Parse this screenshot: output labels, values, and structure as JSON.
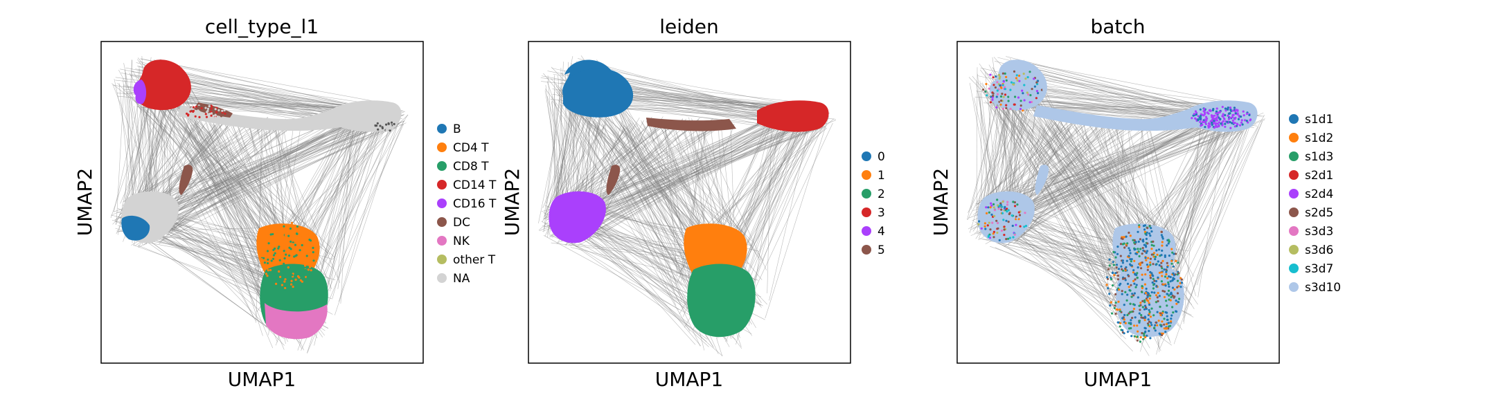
{
  "colors": {
    "edge": "#808080",
    "frame": "#000000",
    "background": "#ffffff"
  },
  "chart_data": [
    {
      "type": "scatter",
      "title": "cell_type_l1",
      "xlabel": "UMAP1",
      "ylabel": "UMAP2",
      "grid": false,
      "ticks": false,
      "legend_position": "right",
      "legend": [
        {
          "label": "B",
          "color": "#1f77b4"
        },
        {
          "label": "CD4 T",
          "color": "#ff7f0e"
        },
        {
          "label": "CD8 T",
          "color": "#279e68"
        },
        {
          "label": "CD14 T",
          "color": "#d62728"
        },
        {
          "label": "CD16 T",
          "color": "#aa40fc"
        },
        {
          "label": "DC",
          "color": "#8c564b"
        },
        {
          "label": "NK",
          "color": "#e377c2"
        },
        {
          "label": "other T",
          "color": "#b5bd61"
        },
        {
          "label": "NA",
          "color": "#d3d3d3"
        }
      ]
    },
    {
      "type": "scatter",
      "title": "leiden",
      "xlabel": "UMAP1",
      "ylabel": "UMAP2",
      "grid": false,
      "ticks": false,
      "legend_position": "right",
      "legend": [
        {
          "label": "0",
          "color": "#1f77b4"
        },
        {
          "label": "1",
          "color": "#ff7f0e"
        },
        {
          "label": "2",
          "color": "#279e68"
        },
        {
          "label": "3",
          "color": "#d62728"
        },
        {
          "label": "4",
          "color": "#aa40fc"
        },
        {
          "label": "5",
          "color": "#8c564b"
        }
      ]
    },
    {
      "type": "scatter",
      "title": "batch",
      "xlabel": "UMAP1",
      "ylabel": "UMAP2",
      "grid": false,
      "ticks": false,
      "legend_position": "right",
      "legend": [
        {
          "label": "s1d1",
          "color": "#1f77b4"
        },
        {
          "label": "s1d2",
          "color": "#ff7f0e"
        },
        {
          "label": "s1d3",
          "color": "#279e68"
        },
        {
          "label": "s2d1",
          "color": "#d62728"
        },
        {
          "label": "s2d4",
          "color": "#aa40fc"
        },
        {
          "label": "s2d5",
          "color": "#8c564b"
        },
        {
          "label": "s3d3",
          "color": "#e377c2"
        },
        {
          "label": "s3d6",
          "color": "#b5bd61"
        },
        {
          "label": "s3d7",
          "color": "#17becf"
        },
        {
          "label": "s3d10",
          "color": "#aec7e8"
        }
      ]
    }
  ]
}
